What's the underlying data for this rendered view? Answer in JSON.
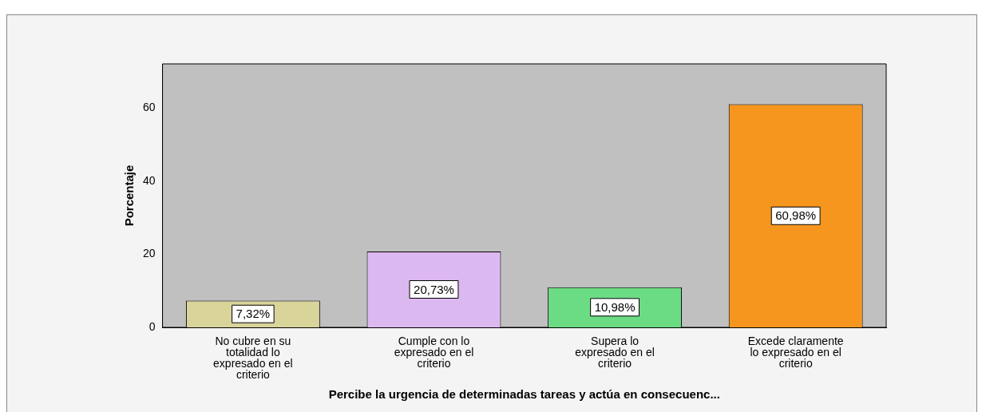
{
  "chart_data": {
    "type": "bar",
    "categories": [
      "No cubre en su totalidad lo expresado en el criterio",
      "Cumple con lo expresado en el criterio",
      "Supera lo expresado en el criterio",
      "Excede claramente lo expresado en el criterio"
    ],
    "values": [
      7.32,
      20.73,
      10.98,
      60.98
    ],
    "colors": [
      "#d8d49a",
      "#dcb8f0",
      "#6cdc84",
      "#f7961e"
    ],
    "value_labels": [
      "7,32%",
      "20,73%",
      "10,98%",
      "60,98%"
    ],
    "xlabel": "Percibe la urgencia de determinadas tareas y actúa en consecuenc...",
    "ylabel": "Porcentaje",
    "ylim": [
      0,
      72
    ],
    "yticks": [
      0,
      20,
      40,
      60
    ],
    "grid": false,
    "legend": false
  }
}
